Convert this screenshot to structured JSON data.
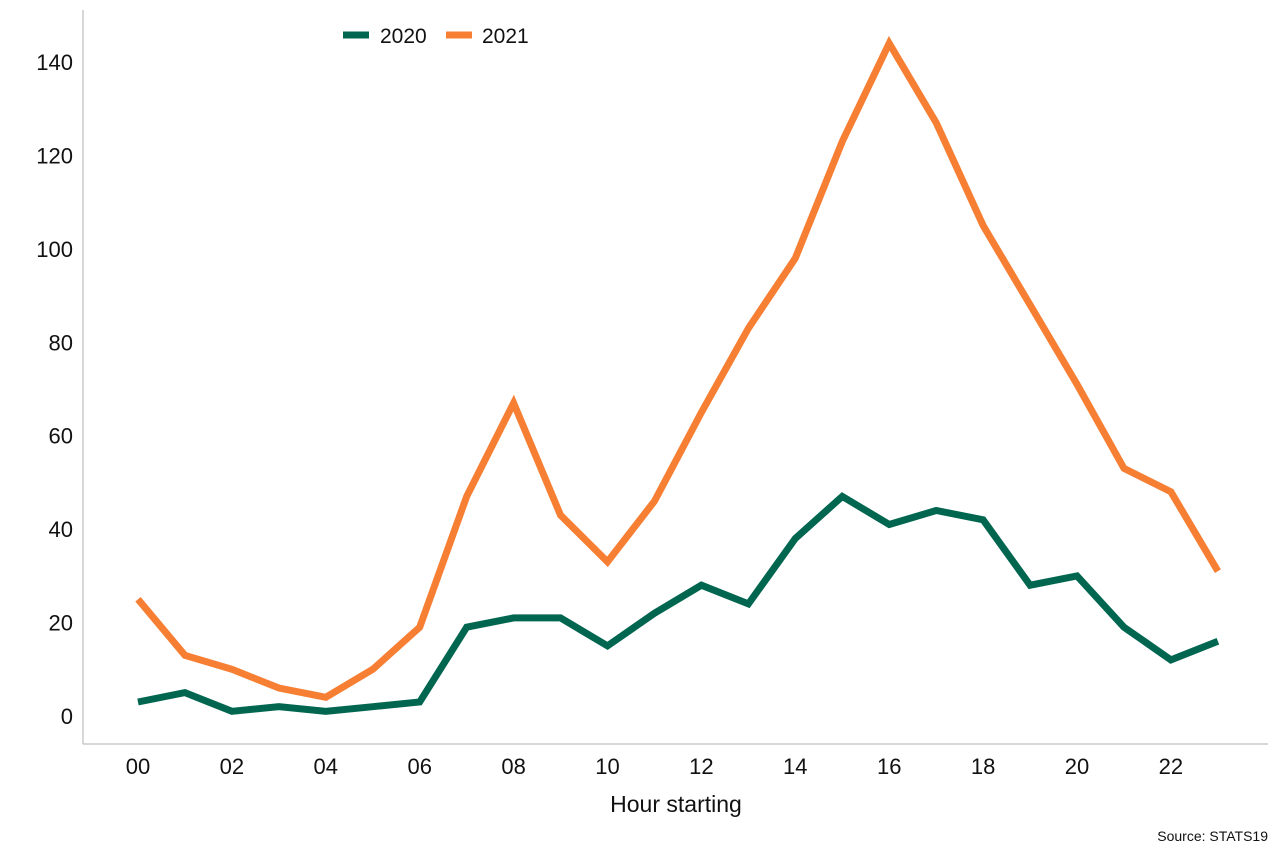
{
  "chart_data": {
    "type": "line",
    "x": [
      "00",
      "01",
      "02",
      "03",
      "04",
      "05",
      "06",
      "07",
      "08",
      "09",
      "10",
      "11",
      "12",
      "13",
      "14",
      "15",
      "16",
      "17",
      "18",
      "19",
      "20",
      "21",
      "22",
      "23"
    ],
    "x_tick_labels": [
      "00",
      "02",
      "04",
      "06",
      "08",
      "10",
      "12",
      "14",
      "16",
      "18",
      "20",
      "22"
    ],
    "series": [
      {
        "name": "2020",
        "color": "#00664f",
        "values": [
          3,
          5,
          1,
          2,
          1,
          2,
          3,
          19,
          21,
          21,
          15,
          22,
          28,
          24,
          38,
          47,
          41,
          44,
          42,
          28,
          30,
          19,
          12,
          16
        ]
      },
      {
        "name": "2021",
        "color": "#f77f34",
        "values": [
          25,
          13,
          10,
          6,
          4,
          10,
          19,
          47,
          67,
          43,
          33,
          46,
          65,
          83,
          98,
          123,
          144,
          127,
          105,
          88,
          71,
          53,
          48,
          31
        ]
      }
    ],
    "title": "",
    "xlabel": "Hour starting",
    "ylabel": "",
    "ylim": [
      -6,
      150
    ],
    "y_ticks": [
      0,
      20,
      40,
      60,
      80,
      100,
      120,
      140
    ],
    "grid": false,
    "legend_position": "top"
  },
  "source_note": "Source: STATS19"
}
